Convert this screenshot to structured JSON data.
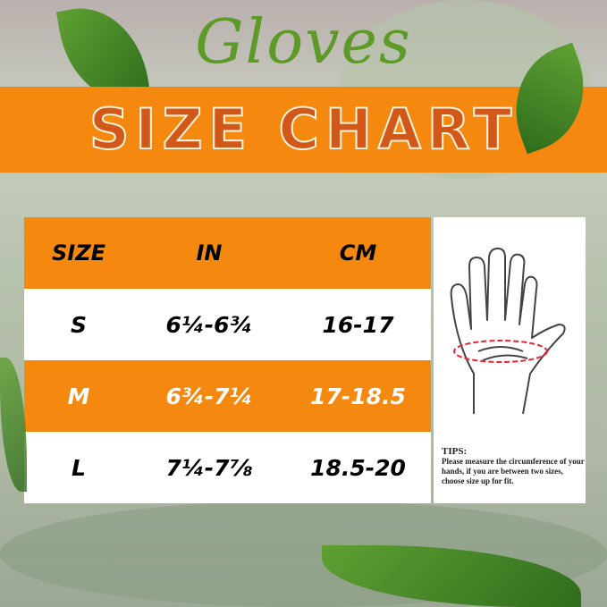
{
  "title": "Gloves",
  "banner": "SIZE CHART",
  "colors": {
    "orange": "#f5880f",
    "title_green": "#5e9a27",
    "banner_text": "#d2581a"
  },
  "table": {
    "headers": [
      "SIZE",
      "IN",
      "CM"
    ],
    "rows": [
      {
        "size": "S",
        "in": "6¼-6¾",
        "cm": "16-17"
      },
      {
        "size": "M",
        "in": "6¾-7¼",
        "cm": "17-18.5"
      },
      {
        "size": "L",
        "in": "7¼-7⅞",
        "cm": "18.5-20"
      }
    ]
  },
  "tips": {
    "heading": "TIPS:",
    "text": "Please measure the circumference of your hands, if you are between two sizes, choose size up for fit."
  },
  "illustration": "hand-measurement-icon"
}
